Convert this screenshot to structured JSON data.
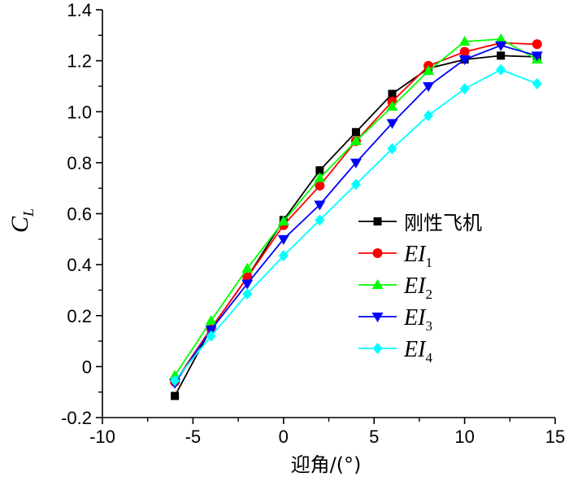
{
  "chart_data": {
    "type": "line",
    "title": "",
    "xlabel": "迎角/(°)",
    "ylabel": {
      "main": "C",
      "sub": "L"
    },
    "xlim": [
      -10,
      15
    ],
    "ylim": [
      -0.2,
      1.4
    ],
    "xticks": [
      "-10",
      "-5",
      "0",
      "5",
      "10",
      "15"
    ],
    "yticks": [
      "-0.2",
      "0",
      "0.2",
      "0.4",
      "0.6",
      "0.8",
      "1.0",
      "1.2",
      "1.4"
    ],
    "x": [
      -6,
      -4,
      -2,
      0,
      2,
      4,
      6,
      8,
      10,
      12,
      14
    ],
    "legend_position": "center-right",
    "series": [
      {
        "name": "刚性飞机",
        "label_main": "刚性飞机",
        "label_sub": "",
        "color": "#000000",
        "marker": "square",
        "values": [
          -0.115,
          0.15,
          0.35,
          0.575,
          0.77,
          0.92,
          1.07,
          1.17,
          1.205,
          1.22,
          1.215
        ]
      },
      {
        "name": "EI1",
        "label_main": "EI",
        "label_sub": "1",
        "color": "#ff0000",
        "marker": "circle",
        "values": [
          -0.06,
          0.15,
          0.35,
          0.555,
          0.71,
          0.885,
          1.04,
          1.18,
          1.235,
          1.27,
          1.265
        ]
      },
      {
        "name": "EI2",
        "label_main": "EI",
        "label_sub": "2",
        "color": "#00ff00",
        "marker": "triangle-up",
        "values": [
          -0.035,
          0.18,
          0.385,
          0.57,
          0.74,
          0.885,
          1.02,
          1.16,
          1.275,
          1.285,
          1.205
        ]
      },
      {
        "name": "EI3",
        "label_main": "EI",
        "label_sub": "3",
        "color": "#0000ff",
        "marker": "triangle-down",
        "values": [
          -0.065,
          0.145,
          0.325,
          0.5,
          0.635,
          0.8,
          0.955,
          1.1,
          1.205,
          1.26,
          1.22
        ]
      },
      {
        "name": "EI4",
        "label_main": "EI",
        "label_sub": "4",
        "color": "#00ffff",
        "marker": "diamond",
        "values": [
          -0.055,
          0.12,
          0.285,
          0.435,
          0.575,
          0.715,
          0.855,
          0.985,
          1.09,
          1.165,
          1.11
        ]
      }
    ]
  }
}
